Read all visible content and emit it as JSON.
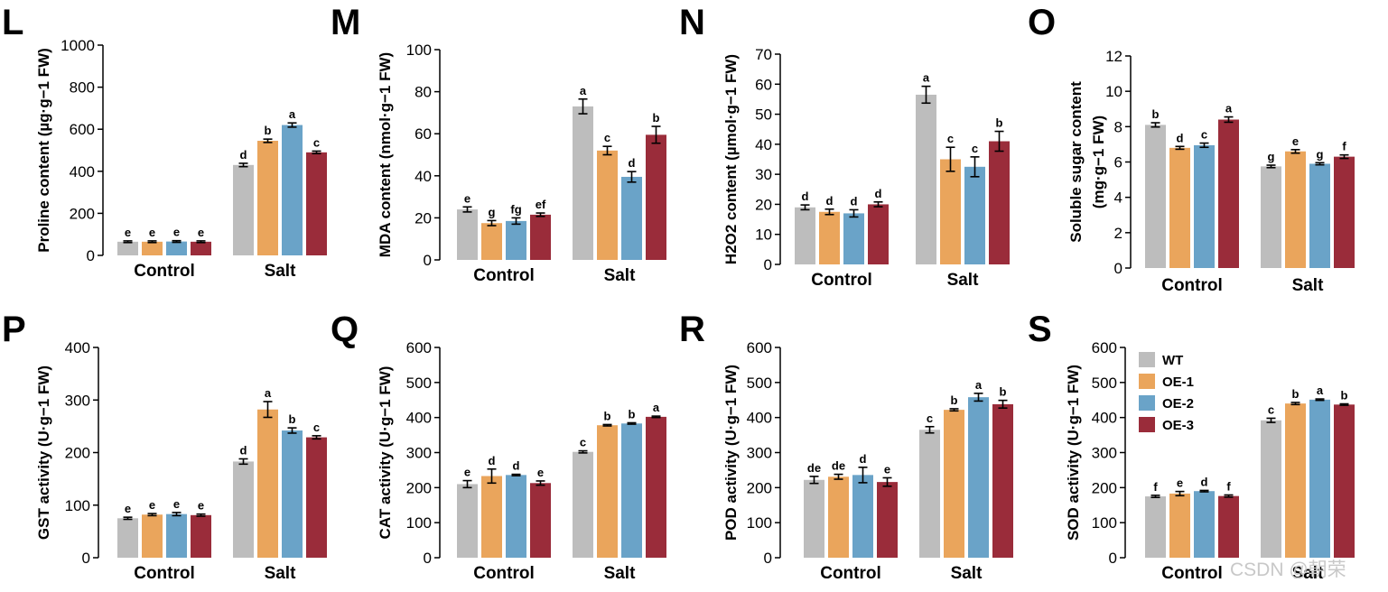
{
  "chart_data": [
    {
      "type": "bar",
      "panel": "L",
      "ylabel": "Proline content (µg·g−1 FW)",
      "ylim": [
        0,
        1000
      ],
      "yticks": [
        0,
        200,
        400,
        600,
        800,
        1000
      ],
      "categories": [
        "Control",
        "Salt"
      ],
      "series": [
        {
          "name": "WT",
          "values": [
            65,
            430
          ],
          "errors": [
            4,
            8
          ],
          "letters": [
            "e",
            "d"
          ]
        },
        {
          "name": "OE-1",
          "values": [
            65,
            545
          ],
          "errors": [
            4,
            8
          ],
          "letters": [
            "e",
            "b"
          ]
        },
        {
          "name": "OE-2",
          "values": [
            66,
            620
          ],
          "errors": [
            4,
            10
          ],
          "letters": [
            "e",
            "a"
          ]
        },
        {
          "name": "OE-3",
          "values": [
            65,
            490
          ],
          "errors": [
            4,
            6
          ],
          "letters": [
            "e",
            "c"
          ]
        }
      ]
    },
    {
      "type": "bar",
      "panel": "M",
      "ylabel": "MDA content (nmol·g−1 FW)",
      "ylim": [
        0,
        100
      ],
      "yticks": [
        0,
        20,
        40,
        60,
        80,
        100
      ],
      "categories": [
        "Control",
        "Salt"
      ],
      "series": [
        {
          "name": "WT",
          "values": [
            24,
            73
          ],
          "errors": [
            1.2,
            3.5
          ],
          "letters": [
            "e",
            "a"
          ]
        },
        {
          "name": "OE-1",
          "values": [
            17.5,
            52
          ],
          "errors": [
            1.2,
            2
          ],
          "letters": [
            "g",
            "c"
          ]
        },
        {
          "name": "OE-2",
          "values": [
            18.5,
            39.5
          ],
          "errors": [
            1.5,
            2.5
          ],
          "letters": [
            "fg",
            "d"
          ]
        },
        {
          "name": "OE-3",
          "values": [
            21.5,
            59.5
          ],
          "errors": [
            0.8,
            4
          ],
          "letters": [
            "ef",
            "b"
          ]
        }
      ]
    },
    {
      "type": "bar",
      "panel": "N",
      "ylabel": "H2O2 content (µmol·g−1 FW)",
      "ylim": [
        0,
        70
      ],
      "yticks": [
        0,
        10,
        20,
        30,
        40,
        50,
        60,
        70
      ],
      "categories": [
        "Control",
        "Salt"
      ],
      "series": [
        {
          "name": "WT",
          "values": [
            19,
            56.5
          ],
          "errors": [
            0.8,
            2.8
          ],
          "letters": [
            "d",
            "a"
          ]
        },
        {
          "name": "OE-1",
          "values": [
            17.5,
            35
          ],
          "errors": [
            0.9,
            4
          ],
          "letters": [
            "d",
            "c"
          ]
        },
        {
          "name": "OE-2",
          "values": [
            17,
            32.5
          ],
          "errors": [
            1.2,
            3.3
          ],
          "letters": [
            "d",
            "c"
          ]
        },
        {
          "name": "OE-3",
          "values": [
            20,
            41
          ],
          "errors": [
            0.8,
            3.3
          ],
          "letters": [
            "d",
            "b"
          ]
        }
      ]
    },
    {
      "type": "bar",
      "panel": "O",
      "ylabel": "Soluble sugar content (mg·g−1 FW)",
      "ylim": [
        0,
        12
      ],
      "yticks": [
        0,
        2,
        4,
        6,
        8,
        10,
        12
      ],
      "categories": [
        "Control",
        "Salt"
      ],
      "series": [
        {
          "name": "WT",
          "values": [
            8.1,
            5.75
          ],
          "errors": [
            0.12,
            0.07
          ],
          "letters": [
            "b",
            "g"
          ]
        },
        {
          "name": "OE-1",
          "values": [
            6.8,
            6.6
          ],
          "errors": [
            0.08,
            0.1
          ],
          "letters": [
            "d",
            "e"
          ]
        },
        {
          "name": "OE-2",
          "values": [
            6.95,
            5.9
          ],
          "errors": [
            0.12,
            0.06
          ],
          "letters": [
            "c",
            "g"
          ]
        },
        {
          "name": "OE-3",
          "values": [
            8.4,
            6.3
          ],
          "errors": [
            0.15,
            0.1
          ],
          "letters": [
            "a",
            "f"
          ]
        }
      ]
    },
    {
      "type": "bar",
      "panel": "P",
      "ylabel": "GST activity (U·g−1 FW)",
      "ylim": [
        0,
        400
      ],
      "yticks": [
        0,
        100,
        200,
        300,
        400
      ],
      "categories": [
        "Control",
        "Salt"
      ],
      "series": [
        {
          "name": "WT",
          "values": [
            75,
            183
          ],
          "errors": [
            2,
            5
          ],
          "letters": [
            "e",
            "d"
          ]
        },
        {
          "name": "OE-1",
          "values": [
            82,
            282
          ],
          "errors": [
            2,
            15
          ],
          "letters": [
            "e",
            "a"
          ]
        },
        {
          "name": "OE-2",
          "values": [
            83,
            242
          ],
          "errors": [
            3,
            5
          ],
          "letters": [
            "e",
            "b"
          ]
        },
        {
          "name": "OE-3",
          "values": [
            81,
            229
          ],
          "errors": [
            2,
            3
          ],
          "letters": [
            "e",
            "c"
          ]
        }
      ]
    },
    {
      "type": "bar",
      "panel": "Q",
      "ylabel": "CAT activity (U·g−1 FW)",
      "ylim": [
        0,
        600
      ],
      "yticks": [
        0,
        100,
        200,
        300,
        400,
        500,
        600
      ],
      "categories": [
        "Control",
        "Salt"
      ],
      "series": [
        {
          "name": "WT",
          "values": [
            210,
            302
          ],
          "errors": [
            10,
            3
          ],
          "letters": [
            "e",
            "c"
          ]
        },
        {
          "name": "OE-1",
          "values": [
            233,
            378
          ],
          "errors": [
            20,
            2
          ],
          "letters": [
            "d",
            "b"
          ]
        },
        {
          "name": "OE-2",
          "values": [
            236,
            383
          ],
          "errors": [
            2,
            2
          ],
          "letters": [
            "d",
            "b"
          ]
        },
        {
          "name": "OE-3",
          "values": [
            213,
            402
          ],
          "errors": [
            6,
            2
          ],
          "letters": [
            "e",
            "a"
          ]
        }
      ]
    },
    {
      "type": "bar",
      "panel": "R",
      "ylabel": "POD activity (U·g−1 FW)",
      "ylim": [
        0,
        600
      ],
      "yticks": [
        0,
        100,
        200,
        300,
        400,
        500,
        600
      ],
      "categories": [
        "Control",
        "Salt"
      ],
      "series": [
        {
          "name": "WT",
          "values": [
            222,
            365
          ],
          "errors": [
            10,
            9
          ],
          "letters": [
            "de",
            "c"
          ]
        },
        {
          "name": "OE-1",
          "values": [
            231,
            422
          ],
          "errors": [
            7,
            3
          ],
          "letters": [
            "de",
            "b"
          ]
        },
        {
          "name": "OE-2",
          "values": [
            236,
            458
          ],
          "errors": [
            22,
            11
          ],
          "letters": [
            "d",
            "a"
          ]
        },
        {
          "name": "OE-3",
          "values": [
            216,
            438
          ],
          "errors": [
            12,
            11
          ],
          "letters": [
            "e",
            "b"
          ]
        }
      ]
    },
    {
      "type": "bar",
      "panel": "S",
      "ylabel": "SOD activity (U·g−1 FW)",
      "ylim": [
        0,
        600
      ],
      "yticks": [
        0,
        100,
        200,
        300,
        400,
        500,
        600
      ],
      "categories": [
        "Control",
        "Salt"
      ],
      "series": [
        {
          "name": "WT",
          "values": [
            175,
            392
          ],
          "errors": [
            3,
            6
          ],
          "letters": [
            "f",
            "c"
          ]
        },
        {
          "name": "OE-1",
          "values": [
            183,
            440
          ],
          "errors": [
            6,
            3
          ],
          "letters": [
            "e",
            "b"
          ]
        },
        {
          "name": "OE-2",
          "values": [
            190,
            451
          ],
          "errors": [
            2,
            2
          ],
          "letters": [
            "d",
            "a"
          ]
        },
        {
          "name": "OE-3",
          "values": [
            176,
            437
          ],
          "errors": [
            3,
            2
          ],
          "letters": [
            "f",
            "b"
          ]
        }
      ]
    }
  ],
  "legend": {
    "items": [
      {
        "name": "WT",
        "color": "#bdbdbd"
      },
      {
        "name": "OE-1",
        "color": "#eaa55c"
      },
      {
        "name": "OE-2",
        "color": "#6aa3c8"
      },
      {
        "name": "OE-3",
        "color": "#9a2c3a"
      }
    ]
  },
  "watermark": "CSDN @朝荣"
}
